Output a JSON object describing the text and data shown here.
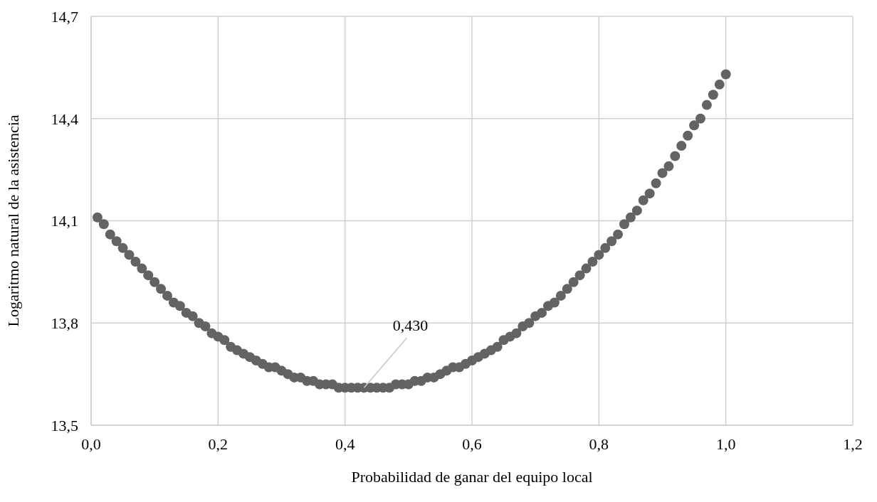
{
  "chart_data": {
    "type": "scatter",
    "xlabel": "Probabilidad de ganar del equipo local",
    "ylabel": "Logaritmo natural de la asistencia",
    "x": [
      0.01,
      0.02,
      0.03,
      0.04,
      0.05,
      0.06,
      0.07,
      0.08,
      0.09,
      0.1,
      0.11,
      0.12,
      0.13,
      0.14,
      0.15,
      0.16,
      0.17,
      0.18,
      0.19,
      0.2,
      0.21,
      0.22,
      0.23,
      0.24,
      0.25,
      0.26,
      0.27,
      0.28,
      0.29,
      0.3,
      0.31,
      0.32,
      0.33,
      0.34,
      0.35,
      0.36,
      0.37,
      0.38,
      0.39,
      0.4,
      0.41,
      0.42,
      0.43,
      0.44,
      0.45,
      0.46,
      0.47,
      0.48,
      0.49,
      0.5,
      0.51,
      0.52,
      0.53,
      0.54,
      0.55,
      0.56,
      0.57,
      0.58,
      0.59,
      0.6,
      0.61,
      0.62,
      0.63,
      0.64,
      0.65,
      0.66,
      0.67,
      0.68,
      0.69,
      0.7,
      0.71,
      0.72,
      0.73,
      0.74,
      0.75,
      0.76,
      0.77,
      0.78,
      0.79,
      0.8,
      0.81,
      0.82,
      0.83,
      0.84,
      0.85,
      0.86,
      0.87,
      0.88,
      0.89,
      0.9,
      0.91,
      0.92,
      0.93,
      0.94,
      0.95,
      0.96,
      0.97,
      0.98,
      0.99,
      1.0
    ],
    "series": [
      {
        "color": "#636363",
        "values": [
          14.11,
          14.09,
          14.06,
          14.04,
          14.02,
          14.0,
          13.98,
          13.96,
          13.94,
          13.92,
          13.9,
          13.88,
          13.86,
          13.85,
          13.83,
          13.82,
          13.8,
          13.79,
          13.77,
          13.76,
          13.75,
          13.73,
          13.72,
          13.71,
          13.7,
          13.69,
          13.68,
          13.67,
          13.67,
          13.66,
          13.65,
          13.64,
          13.64,
          13.63,
          13.63,
          13.62,
          13.62,
          13.62,
          13.61,
          13.61,
          13.61,
          13.61,
          13.61,
          13.61,
          13.61,
          13.61,
          13.61,
          13.62,
          13.62,
          13.62,
          13.63,
          13.63,
          13.64,
          13.64,
          13.65,
          13.66,
          13.67,
          13.67,
          13.68,
          13.69,
          13.7,
          13.71,
          13.72,
          13.73,
          13.75,
          13.76,
          13.77,
          13.79,
          13.8,
          13.82,
          13.83,
          13.85,
          13.86,
          13.88,
          13.9,
          13.92,
          13.94,
          13.96,
          13.98,
          14.0,
          14.02,
          14.04,
          14.06,
          14.09,
          14.11,
          14.13,
          14.16,
          14.18,
          14.21,
          14.24,
          14.26,
          14.29,
          14.32,
          14.35,
          14.38,
          14.4,
          14.44,
          14.47,
          14.5,
          14.53
        ]
      }
    ],
    "xlim": [
      0,
      1.2
    ],
    "xticks": [
      {
        "value": 0,
        "label": "0,0"
      },
      {
        "value": 0.2,
        "label": "0,2"
      },
      {
        "value": 0.4,
        "label": "0,4"
      },
      {
        "value": 0.6,
        "label": "0,6"
      },
      {
        "value": 0.8,
        "label": "0,8"
      },
      {
        "value": 1.0,
        "label": "1,0"
      },
      {
        "value": 1.2,
        "label": "1,2"
      }
    ],
    "ylim": [
      13.5,
      14.7
    ],
    "yticks": [
      {
        "value": 13.5,
        "label": "13,5"
      },
      {
        "value": 13.8,
        "label": "13,8"
      },
      {
        "value": 14.1,
        "label": "14,1"
      },
      {
        "value": 14.4,
        "label": "14,4"
      },
      {
        "value": 14.7,
        "label": "14,7"
      }
    ],
    "annotations": [
      {
        "text": "0,430",
        "x": 0.43,
        "y": 13.61
      }
    ],
    "grid": true,
    "marker": "circle"
  }
}
